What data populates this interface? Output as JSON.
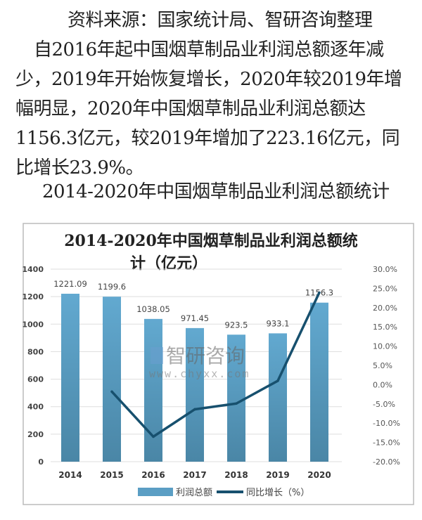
{
  "source_line": "资料来源：国家统计局、智研咨询整理",
  "paragraph_lines": [
    "自2016年起中国烟草制品业利润总额逐年减",
    "少，2019年开始恢复增长，2020年较2019年增",
    "幅明显，2020年中国烟草制品业利润总额达",
    "1156.3亿元，较2019年增加了223.16亿元，同",
    "比增长23.9%。"
  ],
  "figure_caption": "2014-2020年中国烟草制品业利润总额统计",
  "watermark": {
    "brand": "智研咨询",
    "url": "www.chyxx.com"
  },
  "chart_data": {
    "type": "bar+line",
    "title_lines": [
      "2014-2020年中国烟草制品业利润总额统",
      "计（亿元）"
    ],
    "categories": [
      "2014",
      "2015",
      "2016",
      "2017",
      "2018",
      "2019",
      "2020"
    ],
    "series": [
      {
        "name": "利润总额",
        "type": "bar",
        "axis": "left",
        "values": [
          1221.09,
          1199.6,
          1038.05,
          971.45,
          923.5,
          933.1,
          1156.3
        ],
        "labels": [
          "1221.09",
          "1199.6",
          "1038.05",
          "971.45",
          "923.5",
          "933.1",
          "1156.3"
        ],
        "color": "#5b9ec4"
      },
      {
        "name": "同比增长（%）",
        "type": "line",
        "axis": "right",
        "values": [
          null,
          -1.8,
          -13.5,
          -6.4,
          -4.9,
          1.0,
          23.9
        ],
        "color": "#17506e"
      }
    ],
    "left_axis": {
      "min": 0,
      "max": 1400,
      "ticks": [
        "0",
        "200",
        "400",
        "600",
        "800",
        "1000",
        "1200",
        "1400"
      ]
    },
    "right_axis": {
      "min": -20,
      "max": 30,
      "ticks": [
        "-20.0%",
        "-15.0%",
        "-10.0%",
        "-5.0%",
        "0.0%",
        "5.0%",
        "10.0%",
        "15.0%",
        "20.0%",
        "25.0%",
        "30.0%"
      ]
    },
    "grid": true,
    "legend_position": "bottom"
  }
}
